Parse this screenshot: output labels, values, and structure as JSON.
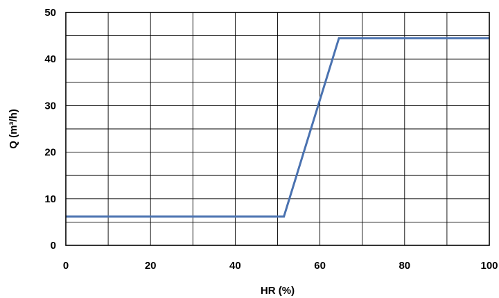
{
  "chart_data": {
    "type": "line",
    "title": "",
    "xlabel": "HR (%)",
    "ylabel": "Q (m³/h)",
    "xlim": [
      0,
      100
    ],
    "ylim": [
      0,
      50
    ],
    "x_ticks": [
      0,
      20,
      40,
      60,
      80,
      100
    ],
    "y_ticks": [
      0,
      10,
      20,
      30,
      40,
      50
    ],
    "x_tick_labels": [
      "0",
      "20",
      "40",
      "60",
      "80",
      "100"
    ],
    "y_tick_labels": [
      "0",
      "10",
      "20",
      "30",
      "40",
      "50"
    ],
    "grid": true,
    "legend": "none",
    "series": [
      {
        "x": [
          0,
          51.5,
          64.5,
          100
        ],
        "y": [
          6.2,
          6.2,
          44.5,
          44.5
        ],
        "color": "#4a72b0"
      }
    ]
  }
}
